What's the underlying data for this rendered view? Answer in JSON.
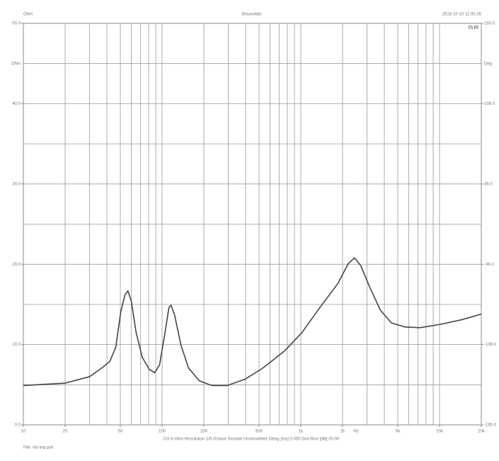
{
  "chart_data": {
    "type": "line",
    "title": "Sinusoidal",
    "y_unit_label": "Ohm",
    "y2_unit_label": "Deg",
    "timestamp": "2016-10-10 11:00:26",
    "brand": "CLIO",
    "footer": "CH A  Ohm  Resolution 1/6 Octave  Smooth Unsmoothed  Delay [ms] 0.000  Dist Rise [dB] 00.00",
    "file_label": "File: sfs-imp.prk",
    "x_unit_label": "Hz",
    "log_x": true,
    "grid": true,
    "xlim": [
      10,
      20000
    ],
    "xticks": [
      10,
      20,
      50,
      100,
      200,
      500,
      {
        "value": 1000,
        "label": "1k"
      },
      {
        "value": 2000,
        "label": "2k"
      },
      {
        "value": 5000,
        "label": "5k"
      },
      {
        "value": 10000,
        "label": "10k"
      },
      {
        "value": 20000,
        "label": "20k"
      }
    ],
    "x_gridlines": [
      20,
      30,
      40,
      50,
      60,
      70,
      80,
      90,
      100,
      200,
      300,
      400,
      500,
      600,
      700,
      800,
      900,
      1000,
      2000,
      3000,
      4000,
      5000,
      6000,
      7000,
      8000,
      9000,
      10000
    ],
    "ylim": [
      0,
      50
    ],
    "yticks": [
      {
        "value": 0,
        "label": "0.0"
      },
      {
        "value": 10,
        "label": "10.0"
      },
      {
        "value": 20,
        "label": "20.0"
      },
      {
        "value": 30,
        "label": "30.0"
      },
      {
        "value": 40,
        "label": "40.0"
      },
      {
        "value": 50,
        "label": "50.0"
      }
    ],
    "y_gridlines": [
      5,
      10,
      15,
      20,
      25,
      30,
      35,
      40,
      45
    ],
    "y2lim": [
      -180,
      180
    ],
    "y2ticks": [
      {
        "value": -180,
        "label": "-180.0"
      },
      {
        "value": -108,
        "label": "-108.0"
      },
      {
        "value": -36,
        "label": "-36.0"
      },
      {
        "value": 36,
        "label": "36.0"
      },
      {
        "value": 108,
        "label": "108.0"
      },
      {
        "value": 180,
        "label": "180.0"
      }
    ],
    "x": [
      10,
      20,
      30,
      37.5,
      42,
      46.4,
      50.4,
      54,
      56.7,
      60,
      65,
      72,
      81,
      88.6,
      96,
      105,
      112,
      116,
      123,
      137,
      155,
      185,
      228,
      295,
      398,
      535,
      763,
      1020,
      1370,
      1850,
      2200,
      2440,
      2710,
      3130,
      3740,
      4500,
      5600,
      7200,
      10000,
      14500,
      20000
    ],
    "series": [
      {
        "name": "Impedance",
        "color": "#444444",
        "values": [
          4.9,
          5.2,
          6.0,
          7.2,
          7.9,
          9.7,
          14.1,
          16.2,
          16.7,
          15.4,
          11.5,
          8.4,
          6.9,
          6.5,
          7.5,
          11.5,
          14.6,
          14.9,
          13.7,
          9.9,
          7.1,
          5.5,
          4.9,
          4.9,
          5.7,
          7.1,
          9.2,
          11.5,
          14.6,
          17.6,
          20.1,
          20.8,
          19.8,
          17.2,
          14.3,
          12.7,
          12.2,
          12.1,
          12.5,
          13.1,
          13.8
        ]
      }
    ]
  }
}
